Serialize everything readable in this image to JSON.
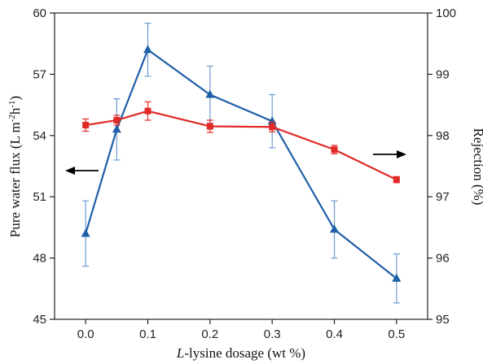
{
  "chart_data": {
    "type": "line",
    "xlabel_italic": "L",
    "xlabel_rest": "-lysine dosage (wt %)",
    "ylabel_left_parts": [
      "Pure water flux (L m",
      "-2",
      "h",
      "-1",
      ")"
    ],
    "ylabel_right": "Rejection (%)",
    "xlim": [
      -0.05,
      0.55
    ],
    "ylim_left": [
      45,
      60
    ],
    "ylim_right": [
      95,
      100
    ],
    "x_ticks": [
      "0.0",
      "0.1",
      "0.2",
      "0.3",
      "0.4",
      "0.5"
    ],
    "x_tick_values": [
      0.0,
      0.1,
      0.2,
      0.3,
      0.4,
      0.5
    ],
    "y_left_ticks": [
      "45",
      "48",
      "51",
      "54",
      "57",
      "60"
    ],
    "y_left_tick_values": [
      45,
      48,
      51,
      54,
      57,
      60
    ],
    "y_right_ticks": [
      "95",
      "96",
      "97",
      "98",
      "99",
      "100"
    ],
    "y_right_tick_values": [
      95,
      96,
      97,
      98,
      99,
      100
    ],
    "grid": false,
    "series": [
      {
        "axis": "left",
        "color": "#1f5fa8",
        "errorbar_color": "#6a9bd0",
        "marker": "triangle",
        "x": [
          0.0,
          0.05,
          0.1,
          0.2,
          0.3,
          0.4,
          0.5
        ],
        "values": [
          49.2,
          54.3,
          58.2,
          56.0,
          54.7,
          49.4,
          47.0
        ],
        "errors": [
          1.6,
          1.5,
          1.3,
          1.4,
          1.3,
          1.4,
          1.2
        ]
      },
      {
        "axis": "right",
        "color": "#e02a26",
        "errorbar_color": "#e02a26",
        "marker": "square",
        "x": [
          0.0,
          0.05,
          0.1,
          0.2,
          0.3,
          0.4,
          0.5
        ],
        "values": [
          98.17,
          98.25,
          98.4,
          98.15,
          98.14,
          97.77,
          97.28
        ],
        "errors": [
          0.1,
          0.08,
          0.15,
          0.1,
          0.08,
          0.07,
          0.05
        ]
      }
    ],
    "annotations": [
      {
        "type": "arrow",
        "direction": "left",
        "points_to": "left axis"
      },
      {
        "type": "arrow",
        "direction": "right",
        "points_to": "right axis"
      }
    ]
  }
}
